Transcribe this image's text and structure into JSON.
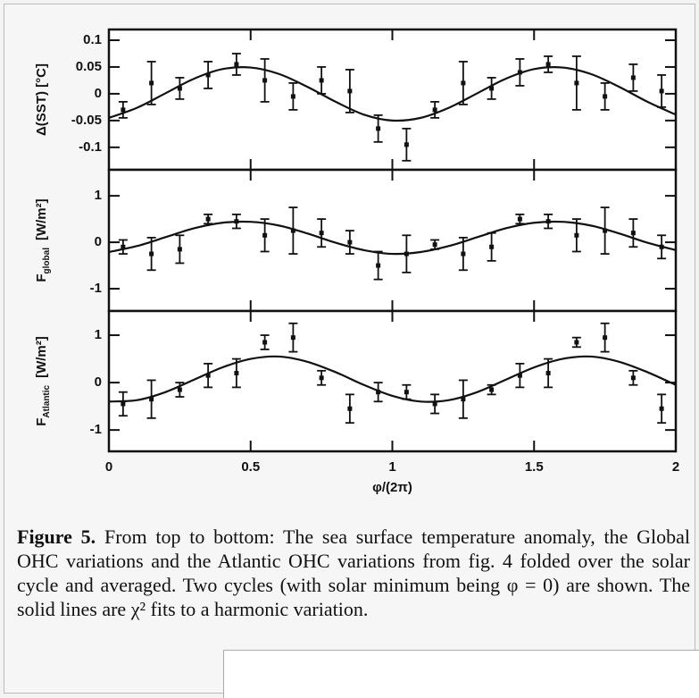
{
  "chart_data": [
    {
      "type": "scatter",
      "ylabel": "Δ(SST) [°C]",
      "xlim": [
        0,
        2
      ],
      "xticks": [
        0,
        0.5,
        1,
        1.5,
        2
      ],
      "ylim": [
        -0.142,
        0.12
      ],
      "yticks": [
        0.1,
        0.05,
        0,
        -0.05,
        -0.1
      ],
      "x": [
        0.05,
        0.15,
        0.25,
        0.35,
        0.45,
        0.55,
        0.65,
        0.75,
        0.85,
        0.95,
        1.05,
        1.15,
        1.25,
        1.35,
        1.45,
        1.55,
        1.65,
        1.75,
        1.85,
        1.95
      ],
      "values": [
        -0.03,
        0.02,
        0.01,
        0.035,
        0.055,
        0.025,
        -0.005,
        0.025,
        0.005,
        -0.065,
        -0.095,
        -0.03,
        0.02,
        0.01,
        0.04,
        0.055,
        0.02,
        -0.005,
        0.03,
        0.005
      ],
      "errors": [
        0.015,
        0.04,
        0.02,
        0.025,
        0.02,
        0.04,
        0.025,
        0.025,
        0.04,
        0.025,
        0.03,
        0.015,
        0.04,
        0.02,
        0.025,
        0.015,
        0.05,
        0.025,
        0.025,
        0.03
      ],
      "fit": {
        "x": [
          0,
          0.1,
          0.2,
          0.3,
          0.4,
          0.5,
          0.6,
          0.7,
          0.8,
          0.9,
          1.0,
          1.1,
          1.2,
          1.3,
          1.4,
          1.5,
          1.6,
          1.7,
          1.8,
          1.9,
          2.0
        ],
        "values": [
          -0.045,
          -0.026,
          0.001,
          0.028,
          0.046,
          0.049,
          0.037,
          0.013,
          -0.015,
          -0.039,
          -0.05,
          -0.045,
          -0.026,
          0.001,
          0.028,
          0.046,
          0.049,
          0.037,
          0.013,
          -0.015,
          -0.039
        ]
      }
    },
    {
      "type": "scatter",
      "ylabel": {
        "symbol": "F",
        "subscript": "global",
        "unit": "[W/m²]"
      },
      "xlim": [
        0,
        2
      ],
      "xticks": [
        0,
        0.5,
        1,
        1.5,
        2
      ],
      "ylim": [
        -1.48,
        1.56
      ],
      "yticks": [
        1,
        0,
        -1
      ],
      "x": [
        0.05,
        0.15,
        0.25,
        0.35,
        0.45,
        0.55,
        0.65,
        0.75,
        0.85,
        0.95,
        1.05,
        1.15,
        1.25,
        1.35,
        1.45,
        1.55,
        1.65,
        1.75,
        1.85,
        1.95
      ],
      "values": [
        -0.1,
        -0.25,
        -0.15,
        0.5,
        0.45,
        0.15,
        0.25,
        0.2,
        0,
        -0.5,
        -0.25,
        -0.05,
        -0.25,
        -0.1,
        0.5,
        0.45,
        0.15,
        0.25,
        0.2,
        -0.1
      ],
      "errors": [
        0.15,
        0.35,
        0.3,
        0.1,
        0.15,
        0.35,
        0.5,
        0.3,
        0.25,
        0.3,
        0.4,
        0.1,
        0.35,
        0.3,
        0.1,
        0.15,
        0.35,
        0.5,
        0.3,
        0.25
      ],
      "fit": {
        "x": [
          0,
          0.1,
          0.2,
          0.3,
          0.4,
          0.5,
          0.6,
          0.7,
          0.8,
          0.9,
          1.0,
          1.1,
          1.2,
          1.3,
          1.4,
          1.5,
          1.6,
          1.7,
          1.8,
          1.9,
          2.0
        ],
        "values": [
          -0.21,
          -0.08,
          0.11,
          0.3,
          0.42,
          0.44,
          0.36,
          0.19,
          -0.01,
          -0.17,
          -0.25,
          -0.21,
          -0.08,
          0.11,
          0.3,
          0.42,
          0.44,
          0.36,
          0.19,
          -0.01,
          -0.17
        ]
      }
    },
    {
      "type": "scatter",
      "ylabel": {
        "symbol": "F",
        "subscript": "Atlantic",
        "unit": "[W/m²]"
      },
      "xlabel": "φ/(2π)",
      "xlim": [
        0,
        2
      ],
      "xticks": [
        0,
        0.5,
        1,
        1.5,
        2
      ],
      "ylim": [
        -1.45,
        1.51
      ],
      "yticks": [
        1,
        0,
        -1
      ],
      "x": [
        0.05,
        0.15,
        0.25,
        0.35,
        0.45,
        0.55,
        0.65,
        0.75,
        0.85,
        0.95,
        1.05,
        1.15,
        1.25,
        1.35,
        1.45,
        1.55,
        1.65,
        1.75,
        1.85,
        1.95
      ],
      "values": [
        -0.45,
        -0.35,
        -0.15,
        0.15,
        0.2,
        0.85,
        0.95,
        0.1,
        -0.55,
        -0.2,
        -0.2,
        -0.45,
        -0.35,
        -0.15,
        0.15,
        0.2,
        0.85,
        0.95,
        0.1,
        -0.55
      ],
      "errors": [
        0.25,
        0.4,
        0.15,
        0.25,
        0.3,
        0.15,
        0.3,
        0.15,
        0.3,
        0.2,
        0.15,
        0.2,
        0.4,
        0.1,
        0.25,
        0.3,
        0.1,
        0.3,
        0.15,
        0.3
      ],
      "fit": {
        "x": [
          0,
          0.1,
          0.2,
          0.3,
          0.4,
          0.5,
          0.6,
          0.7,
          0.8,
          0.9,
          1.0,
          1.1,
          1.2,
          1.3,
          1.4,
          1.5,
          1.6,
          1.7,
          1.8,
          1.9,
          2.0
        ],
        "values": [
          -0.4,
          -0.37,
          -0.2,
          0.06,
          0.32,
          0.5,
          0.55,
          0.44,
          0.22,
          -0.05,
          -0.28,
          -0.4,
          -0.37,
          -0.2,
          0.06,
          0.32,
          0.5,
          0.55,
          0.44,
          0.22,
          -0.05
        ]
      }
    }
  ],
  "caption": {
    "label": "Figure 5.",
    "text": "From top to bottom: The sea surface temperature anomaly, the Global OHC variations and the Atlantic OHC variations from fig. 4 folded over the solar cycle and averaged. Two cycles (with solar minimum being φ = 0) are shown. The solid lines are χ² fits to a harmonic variation."
  }
}
